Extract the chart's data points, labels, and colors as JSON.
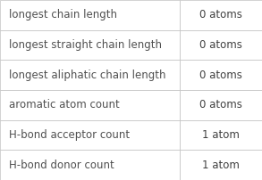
{
  "rows": [
    [
      "longest chain length",
      "0 atoms"
    ],
    [
      "longest straight chain length",
      "0 atoms"
    ],
    [
      "longest aliphatic chain length",
      "0 atoms"
    ],
    [
      "aromatic atom count",
      "0 atoms"
    ],
    [
      "H-bond acceptor count",
      "1 atom"
    ],
    [
      "H-bond donor count",
      "1 atom"
    ]
  ],
  "col_split": 0.685,
  "bg_color": "#ffffff",
  "border_color": "#c0c0c0",
  "text_color_left": "#505050",
  "text_color_right": "#404040",
  "font_size": 8.5,
  "row_colors": [
    "#ffffff",
    "#ffffff",
    "#ffffff",
    "#ffffff",
    "#ffffff",
    "#ffffff"
  ]
}
